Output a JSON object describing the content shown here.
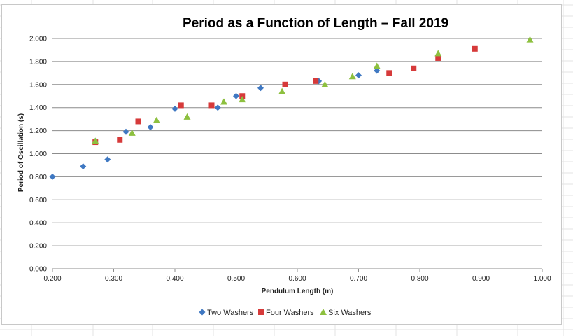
{
  "colors": {
    "two_washers": "#3f78c2",
    "four_washers": "#d63a3a",
    "six_washers": "#8dc03f",
    "gridline": "#8c8c8c",
    "axis": "#8c8c8c"
  },
  "chart_data": {
    "type": "scatter",
    "title": "Period as a Function of Length – Fall 2019",
    "xlabel": "Pendulum Length (m)",
    "ylabel": "Period of Oscillation (s)",
    "xlim": [
      0.2,
      1.0
    ],
    "ylim": [
      0.0,
      2.0
    ],
    "x_ticks": [
      "0.200",
      "0.300",
      "0.400",
      "0.500",
      "0.600",
      "0.700",
      "0.800",
      "0.900",
      "1.000"
    ],
    "y_ticks": [
      "0.000",
      "0.200",
      "0.400",
      "0.600",
      "0.800",
      "1.000",
      "1.200",
      "1.400",
      "1.600",
      "1.800",
      "2.000"
    ],
    "grid": "horizontal",
    "legend_position": "bottom",
    "series": [
      {
        "name": "Two Washers",
        "marker": "diamond",
        "color": "#3f78c2",
        "points": [
          [
            0.2,
            0.8
          ],
          [
            0.25,
            0.89
          ],
          [
            0.27,
            1.11
          ],
          [
            0.29,
            0.95
          ],
          [
            0.32,
            1.19
          ],
          [
            0.36,
            1.23
          ],
          [
            0.4,
            1.39
          ],
          [
            0.47,
            1.4
          ],
          [
            0.5,
            1.5
          ],
          [
            0.54,
            1.57
          ],
          [
            0.635,
            1.63
          ],
          [
            0.7,
            1.68
          ],
          [
            0.73,
            1.72
          ]
        ]
      },
      {
        "name": "Four Washers",
        "marker": "square",
        "color": "#d63a3a",
        "points": [
          [
            0.27,
            1.1
          ],
          [
            0.31,
            1.12
          ],
          [
            0.34,
            1.28
          ],
          [
            0.41,
            1.42
          ],
          [
            0.46,
            1.42
          ],
          [
            0.51,
            1.5
          ],
          [
            0.58,
            1.6
          ],
          [
            0.63,
            1.63
          ],
          [
            0.75,
            1.7
          ],
          [
            0.79,
            1.74
          ],
          [
            0.83,
            1.83
          ],
          [
            0.89,
            1.91
          ]
        ]
      },
      {
        "name": "Six Washers",
        "marker": "triangle",
        "color": "#8dc03f",
        "points": [
          [
            0.27,
            1.11
          ],
          [
            0.33,
            1.18
          ],
          [
            0.37,
            1.29
          ],
          [
            0.42,
            1.32
          ],
          [
            0.48,
            1.45
          ],
          [
            0.51,
            1.47
          ],
          [
            0.575,
            1.54
          ],
          [
            0.645,
            1.6
          ],
          [
            0.69,
            1.67
          ],
          [
            0.73,
            1.76
          ],
          [
            0.83,
            1.87
          ],
          [
            0.98,
            1.99
          ]
        ]
      }
    ]
  }
}
